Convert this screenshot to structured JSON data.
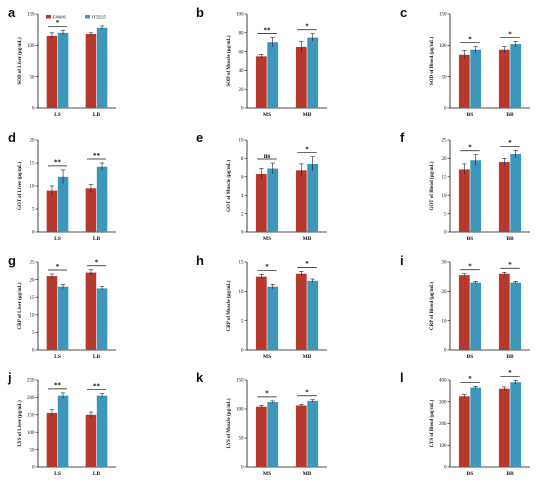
{
  "colors": {
    "series1": "#b7382c",
    "series2": "#3d97bb",
    "axis": "#111111",
    "errorbar": "#222222"
  },
  "legend": [
    "FJ0086",
    "JT5D25"
  ],
  "chart_data": [
    {
      "id": "a",
      "type": "bar",
      "letter": "a",
      "ylabel": "SOD of Liver (μg/mL)",
      "categories": [
        "LS",
        "LB"
      ],
      "ylim": [
        0,
        150
      ],
      "yticks": [
        0,
        50,
        100,
        150
      ],
      "series": [
        {
          "name": "FJ0086",
          "values": [
            115,
            118
          ],
          "errors": [
            5,
            2
          ]
        },
        {
          "name": "JT5D25",
          "values": [
            120,
            128
          ],
          "errors": [
            4,
            3
          ]
        }
      ],
      "sig": [
        "*",
        ""
      ],
      "legend": true
    },
    {
      "id": "b",
      "type": "bar",
      "letter": "b",
      "ylabel": "SOD of Muscle (μg/mL)",
      "categories": [
        "MS",
        "MB"
      ],
      "ylim": [
        0,
        100
      ],
      "yticks": [
        0,
        20,
        40,
        60,
        80,
        100
      ],
      "series": [
        {
          "name": "FJ0086",
          "values": [
            55,
            65
          ],
          "errors": [
            2,
            6
          ]
        },
        {
          "name": "JT5D25",
          "values": [
            70,
            75
          ],
          "errors": [
            5,
            4
          ]
        }
      ],
      "sig": [
        "**",
        "*"
      ]
    },
    {
      "id": "c",
      "type": "bar",
      "letter": "c",
      "ylabel": "SOD of Blood (μg/mL)",
      "categories": [
        "BS",
        "BB"
      ],
      "ylim": [
        0,
        150
      ],
      "yticks": [
        0,
        50,
        100,
        150
      ],
      "series": [
        {
          "name": "FJ0086",
          "values": [
            85,
            93
          ],
          "errors": [
            7,
            5
          ]
        },
        {
          "name": "JT5D25",
          "values": [
            93,
            102
          ],
          "errors": [
            5,
            4
          ]
        }
      ],
      "sig": [
        "*",
        "*"
      ]
    },
    {
      "id": "d",
      "type": "bar",
      "letter": "d",
      "ylabel": "GOT of Liver (μg/mL)",
      "categories": [
        "LS",
        "LB"
      ],
      "ylim": [
        0,
        20
      ],
      "yticks": [
        0,
        5,
        10,
        15,
        20
      ],
      "series": [
        {
          "name": "FJ0086",
          "values": [
            9,
            9.5
          ],
          "errors": [
            1,
            0.8
          ]
        },
        {
          "name": "JT5D25",
          "values": [
            12,
            14.2
          ],
          "errors": [
            1.5,
            0.8
          ]
        }
      ],
      "sig": [
        "**",
        "**"
      ]
    },
    {
      "id": "e",
      "type": "bar",
      "letter": "e",
      "ylabel": "GOT of Muscle (μg/mL)",
      "categories": [
        "MS",
        "MB"
      ],
      "ylim": [
        0,
        10
      ],
      "yticks": [
        0,
        2,
        4,
        6,
        8,
        10
      ],
      "series": [
        {
          "name": "FJ0086",
          "values": [
            6.3,
            6.7
          ],
          "errors": [
            0.6,
            0.7
          ]
        },
        {
          "name": "JT5D25",
          "values": [
            6.9,
            7.4
          ],
          "errors": [
            0.6,
            0.8
          ]
        }
      ],
      "sig": [
        "ns",
        "*"
      ]
    },
    {
      "id": "f",
      "type": "bar",
      "letter": "f",
      "ylabel": "GOT of Blood (μg/mL)",
      "categories": [
        "BS",
        "BB"
      ],
      "ylim": [
        0,
        25
      ],
      "yticks": [
        0,
        5,
        10,
        15,
        20,
        25
      ],
      "series": [
        {
          "name": "FJ0086",
          "values": [
            17,
            19
          ],
          "errors": [
            1.5,
            1
          ]
        },
        {
          "name": "JT5D25",
          "values": [
            19.5,
            21.2
          ],
          "errors": [
            1.5,
            1
          ]
        }
      ],
      "sig": [
        "*",
        "*"
      ]
    },
    {
      "id": "g",
      "type": "bar",
      "letter": "g",
      "ylabel": "CRP of Liver (μg/mL)",
      "categories": [
        "LS",
        "LB"
      ],
      "ylim": [
        0,
        25
      ],
      "yticks": [
        0,
        5,
        10,
        15,
        20,
        25
      ],
      "series": [
        {
          "name": "FJ0086",
          "values": [
            21,
            22
          ],
          "errors": [
            0.6,
            0.8
          ]
        },
        {
          "name": "JT5D25",
          "values": [
            18,
            17.5
          ],
          "errors": [
            0.6,
            0.5
          ]
        }
      ],
      "sig": [
        "*",
        "*"
      ]
    },
    {
      "id": "h",
      "type": "bar",
      "letter": "h",
      "ylabel": "CRP of Muscle (μg/mL)",
      "categories": [
        "MS",
        "MB"
      ],
      "ylim": [
        0,
        15
      ],
      "yticks": [
        0,
        5,
        10,
        15
      ],
      "series": [
        {
          "name": "FJ0086",
          "values": [
            12.5,
            13
          ],
          "errors": [
            0.4,
            0.4
          ]
        },
        {
          "name": "JT5D25",
          "values": [
            10.8,
            11.8
          ],
          "errors": [
            0.4,
            0.3
          ]
        }
      ],
      "sig": [
        "*",
        "*"
      ]
    },
    {
      "id": "i",
      "type": "bar",
      "letter": "i",
      "ylabel": "CRP of Blood (μg/mL)",
      "categories": [
        "BS",
        "BB"
      ],
      "ylim": [
        0,
        30
      ],
      "yticks": [
        0,
        10,
        20,
        30
      ],
      "series": [
        {
          "name": "FJ0086",
          "values": [
            25.5,
            26
          ],
          "errors": [
            0.5,
            0.5
          ]
        },
        {
          "name": "JT5D25",
          "values": [
            23,
            23
          ],
          "errors": [
            0.4,
            0.4
          ]
        }
      ],
      "sig": [
        "*",
        "*"
      ]
    },
    {
      "id": "j",
      "type": "bar",
      "letter": "j",
      "ylabel": "LYS of Liver (μg/mL)",
      "categories": [
        "LS",
        "LB"
      ],
      "ylim": [
        0,
        250
      ],
      "yticks": [
        0,
        50,
        100,
        150,
        200,
        250
      ],
      "series": [
        {
          "name": "FJ0086",
          "values": [
            155,
            150
          ],
          "errors": [
            10,
            8
          ]
        },
        {
          "name": "JT5D25",
          "values": [
            205,
            205
          ],
          "errors": [
            8,
            6
          ]
        }
      ],
      "sig": [
        "**",
        "**"
      ]
    },
    {
      "id": "k",
      "type": "bar",
      "letter": "k",
      "ylabel": "LYS of Muscle (μg/mL)",
      "categories": [
        "MS",
        "MB"
      ],
      "ylim": [
        0,
        150
      ],
      "yticks": [
        0,
        50,
        100,
        150
      ],
      "series": [
        {
          "name": "FJ0086",
          "values": [
            104,
            106
          ],
          "errors": [
            2,
            2
          ]
        },
        {
          "name": "JT5D25",
          "values": [
            112,
            114
          ],
          "errors": [
            2,
            2
          ]
        }
      ],
      "sig": [
        "*",
        "*"
      ]
    },
    {
      "id": "l",
      "type": "bar",
      "letter": "l",
      "ylabel": "LYS of Blood (μg/mL)",
      "categories": [
        "BS",
        "BB"
      ],
      "ylim": [
        0,
        400
      ],
      "yticks": [
        0,
        100,
        200,
        300,
        400
      ],
      "series": [
        {
          "name": "FJ0086",
          "values": [
            325,
            360
          ],
          "errors": [
            8,
            8
          ]
        },
        {
          "name": "JT5D25",
          "values": [
            365,
            390
          ],
          "errors": [
            6,
            8
          ]
        }
      ],
      "sig": [
        "*",
        "*"
      ]
    }
  ]
}
